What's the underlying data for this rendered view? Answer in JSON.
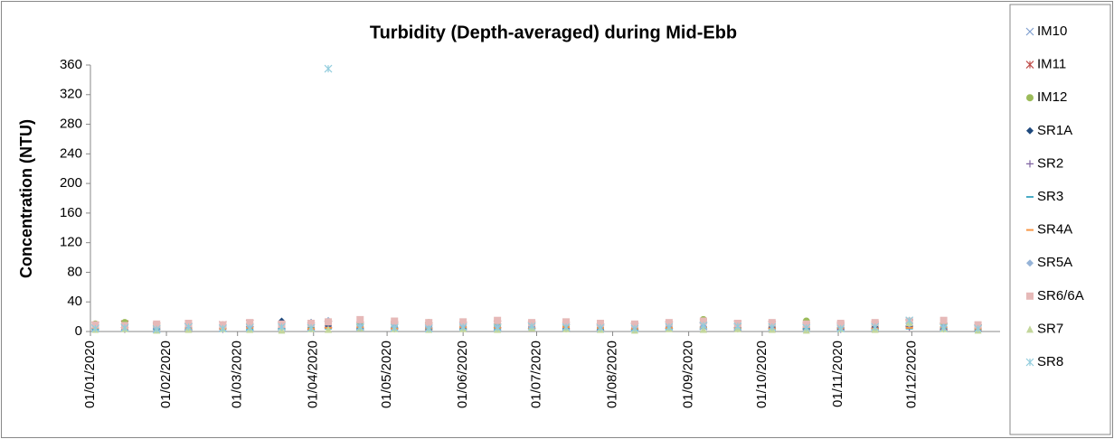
{
  "chart_data": {
    "type": "scatter",
    "title": "Turbidity (Depth-averaged) during Mid-Ebb",
    "y_label": "Concentration (NTU)",
    "ylim": [
      0,
      360
    ],
    "yticks": [
      0,
      40,
      80,
      120,
      160,
      200,
      240,
      280,
      320,
      360
    ],
    "xlim": [
      "01/01/2020",
      "06/01/2021"
    ],
    "xticks": [
      "01/01/2020",
      "01/02/2020",
      "01/03/2020",
      "01/04/2020",
      "01/05/2020",
      "01/06/2020",
      "01/07/2020",
      "01/08/2020",
      "01/09/2020",
      "01/10/2020",
      "01/11/2020",
      "01/12/2020"
    ],
    "grid": false,
    "legend": "right",
    "x": [
      "03/01/2020",
      "15/01/2020",
      "28/01/2020",
      "10/02/2020",
      "24/02/2020",
      "06/03/2020",
      "19/03/2020",
      "31/03/2020",
      "07/04/2020",
      "20/04/2020",
      "04/05/2020",
      "18/05/2020",
      "01/06/2020",
      "15/06/2020",
      "29/06/2020",
      "13/07/2020",
      "27/07/2020",
      "10/08/2020",
      "24/08/2020",
      "07/09/2020",
      "21/09/2020",
      "05/10/2020",
      "19/10/2020",
      "02/11/2020",
      "16/11/2020",
      "30/11/2020",
      "14/12/2020",
      "28/12/2020"
    ],
    "series": [
      {
        "name": "IM10",
        "color": "#7f9fcf",
        "marker": "x",
        "values": [
          5,
          6,
          4,
          7,
          5,
          6,
          8,
          5,
          9,
          6,
          7,
          5,
          8,
          6,
          7,
          5,
          4,
          6,
          8,
          7,
          6,
          9,
          5,
          6,
          7,
          12,
          6,
          4
        ]
      },
      {
        "name": "IM11",
        "color": "#c0504d",
        "marker": "star",
        "values": [
          8,
          10,
          7,
          6,
          9,
          11,
          8,
          7,
          10,
          8,
          9,
          7,
          8,
          10,
          9,
          8,
          6,
          7,
          9,
          8,
          10,
          9,
          7,
          8,
          9,
          11,
          7,
          5
        ]
      },
      {
        "name": "IM12",
        "color": "#9bbb59",
        "marker": "circle",
        "values": [
          10,
          12,
          9,
          8,
          7,
          10,
          9,
          8,
          11,
          9,
          10,
          12,
          9,
          8,
          10,
          9,
          7,
          8,
          10,
          16,
          9,
          8,
          14,
          9,
          8,
          12,
          10,
          6
        ]
      },
      {
        "name": "SR1A",
        "color": "#1f497d",
        "marker": "diamond",
        "values": [
          6,
          5,
          4,
          5,
          6,
          7,
          14,
          12,
          8,
          5,
          6,
          7,
          6,
          5,
          7,
          6,
          4,
          5,
          6,
          7,
          5,
          6,
          4,
          5,
          6,
          8,
          5,
          3
        ]
      },
      {
        "name": "SR2",
        "color": "#8064a2",
        "marker": "plus",
        "values": [
          4,
          3,
          5,
          4,
          3,
          6,
          5,
          4,
          6,
          5,
          4,
          5,
          6,
          4,
          5,
          4,
          3,
          4,
          5,
          6,
          4,
          5,
          4,
          3,
          5,
          6,
          4,
          3
        ]
      },
      {
        "name": "SR3",
        "color": "#4bacc6",
        "marker": "dash",
        "values": [
          3,
          4,
          3,
          5,
          4,
          3,
          4,
          5,
          4,
          3,
          5,
          4,
          3,
          4,
          5,
          3,
          4,
          3,
          4,
          5,
          4,
          3,
          4,
          5,
          3,
          4,
          5,
          3
        ]
      },
      {
        "name": "SR4A",
        "color": "#f79646",
        "marker": "dash",
        "values": [
          5,
          4,
          6,
          5,
          4,
          5,
          6,
          4,
          5,
          6,
          4,
          5,
          6,
          5,
          4,
          6,
          5,
          4,
          5,
          6,
          5,
          4,
          6,
          5,
          4,
          5,
          6,
          4
        ]
      },
      {
        "name": "SR5A",
        "color": "#95b3d7",
        "marker": "diamond",
        "values": [
          7,
          6,
          5,
          6,
          8,
          7,
          6,
          9,
          15,
          8,
          7,
          6,
          8,
          7,
          6,
          9,
          7,
          6,
          8,
          7,
          6,
          8,
          7,
          6,
          9,
          10,
          7,
          6
        ]
      },
      {
        "name": "SR6/6A",
        "color": "#e6b9b8",
        "marker": "square",
        "values": [
          9,
          8,
          10,
          11,
          9,
          12,
          10,
          11,
          13,
          16,
          14,
          12,
          13,
          15,
          12,
          13,
          11,
          10,
          12,
          14,
          11,
          12,
          10,
          11,
          12,
          14,
          15,
          9
        ]
      },
      {
        "name": "SR7",
        "color": "#c3d69b",
        "marker": "triangle",
        "values": [
          3,
          4,
          2,
          3,
          4,
          3,
          2,
          4,
          3,
          5,
          4,
          3,
          4,
          3,
          5,
          4,
          3,
          2,
          4,
          3,
          4,
          3,
          2,
          4,
          3,
          12,
          4,
          2
        ]
      },
      {
        "name": "SR8",
        "color": "#93cddd",
        "marker": "star",
        "values": [
          4,
          5,
          3,
          6,
          4,
          5,
          6,
          5,
          355,
          6,
          5,
          4,
          6,
          5,
          7,
          6,
          5,
          4,
          6,
          8,
          7,
          6,
          5,
          4,
          6,
          15,
          5,
          4
        ]
      }
    ]
  }
}
